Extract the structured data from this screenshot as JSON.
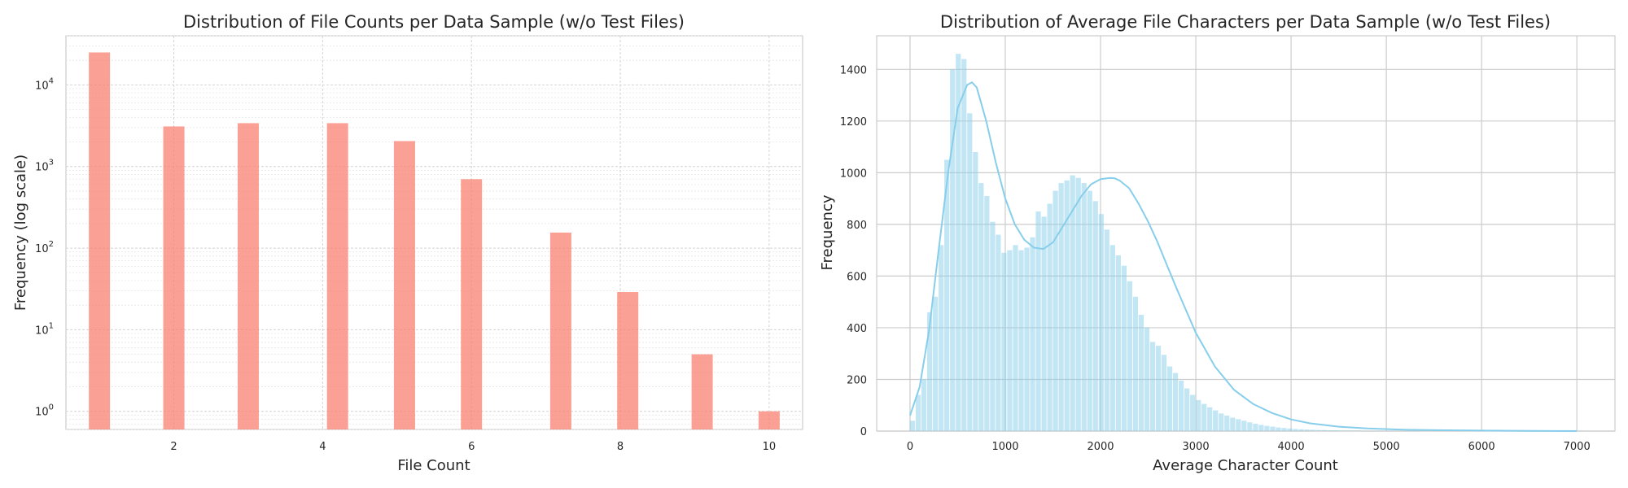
{
  "chart_data": [
    {
      "type": "bar",
      "title": "Distribution of File Counts per Data Sample (w/o Test Files)",
      "xlabel": "File Count",
      "ylabel": "Frequency (log scale)",
      "yscale": "log",
      "ylim": [
        0.6,
        40000
      ],
      "xlim": [
        0.55,
        10.45
      ],
      "grid": true,
      "color": "#fa8072",
      "x_ticks": [
        "2",
        "4",
        "6",
        "8",
        "10"
      ],
      "y_ticks": [
        {
          "value": 1,
          "base": "10",
          "exp": "0"
        },
        {
          "value": 10,
          "base": "10",
          "exp": "1"
        },
        {
          "value": 100,
          "base": "10",
          "exp": "2"
        },
        {
          "value": 1000,
          "base": "10",
          "exp": "3"
        },
        {
          "value": 10000,
          "base": "10",
          "exp": "4"
        }
      ],
      "bars": [
        {
          "x": 1,
          "value": 25000
        },
        {
          "x": 2,
          "value": 3100
        },
        {
          "x": 3,
          "value": 3400
        },
        {
          "x": 4.2,
          "value": 3400
        },
        {
          "x": 5.1,
          "value": 2050
        },
        {
          "x": 6,
          "value": 700
        },
        {
          "x": 7.2,
          "value": 155
        },
        {
          "x": 8.1,
          "value": 29
        },
        {
          "x": 9.1,
          "value": 5
        },
        {
          "x": 10,
          "value": 1
        }
      ]
    },
    {
      "type": "bar",
      "subtype": "histogram-with-kde",
      "title": "Distribution of Average File Characters per Data Sample (w/o Test Files)",
      "xlabel": "Average Character Count",
      "ylabel": "Frequency",
      "ylim": [
        0,
        1530
      ],
      "xlim": [
        -350,
        7400
      ],
      "grid": true,
      "color": "#87ceeb",
      "x_ticks": [
        "0",
        "1000",
        "2000",
        "3000",
        "4000",
        "5000",
        "6000",
        "7000"
      ],
      "y_ticks": [
        "0",
        "200",
        "400",
        "600",
        "800",
        "1000",
        "1200",
        "1400"
      ],
      "bin_start": 0,
      "bin_width": 60,
      "values": [
        40,
        140,
        200,
        460,
        520,
        720,
        1050,
        1400,
        1460,
        1440,
        1230,
        1080,
        960,
        910,
        810,
        760,
        690,
        700,
        720,
        700,
        710,
        750,
        850,
        830,
        880,
        930,
        960,
        970,
        990,
        980,
        960,
        930,
        890,
        840,
        780,
        720,
        680,
        640,
        580,
        520,
        450,
        400,
        345,
        330,
        295,
        250,
        225,
        195,
        165,
        140,
        120,
        105,
        92,
        80,
        68,
        60,
        52,
        46,
        40,
        34,
        28,
        24,
        20,
        17,
        14,
        12,
        10,
        8,
        7,
        6,
        5,
        4,
        4,
        3,
        3,
        2,
        2,
        2,
        2,
        1,
        1,
        1,
        1,
        1,
        1,
        1,
        1,
        1,
        1,
        1,
        1,
        1,
        1,
        0,
        0,
        0,
        0,
        0,
        0,
        0,
        0,
        0,
        0,
        0,
        0,
        0,
        0,
        0,
        0,
        0,
        0,
        0,
        0,
        0,
        0,
        0,
        0,
        1
      ],
      "kde": {
        "x": [
          0,
          100,
          200,
          300,
          400,
          500,
          600,
          650,
          700,
          800,
          900,
          1000,
          1100,
          1200,
          1300,
          1400,
          1500,
          1600,
          1700,
          1800,
          1900,
          2000,
          2100,
          2150,
          2200,
          2300,
          2400,
          2500,
          2600,
          2700,
          2800,
          2900,
          3000,
          3200,
          3400,
          3600,
          3800,
          4000,
          4200,
          4500,
          4800,
          5200,
          5600,
          6000,
          6500,
          7000
        ],
        "y": [
          60,
          170,
          390,
          700,
          1000,
          1250,
          1340,
          1350,
          1330,
          1200,
          1040,
          900,
          800,
          740,
          710,
          705,
          730,
          790,
          850,
          910,
          955,
          975,
          980,
          978,
          970,
          940,
          880,
          810,
          730,
          640,
          550,
          465,
          380,
          250,
          160,
          105,
          70,
          45,
          30,
          17,
          10,
          5,
          3,
          2,
          1,
          0
        ]
      }
    }
  ]
}
